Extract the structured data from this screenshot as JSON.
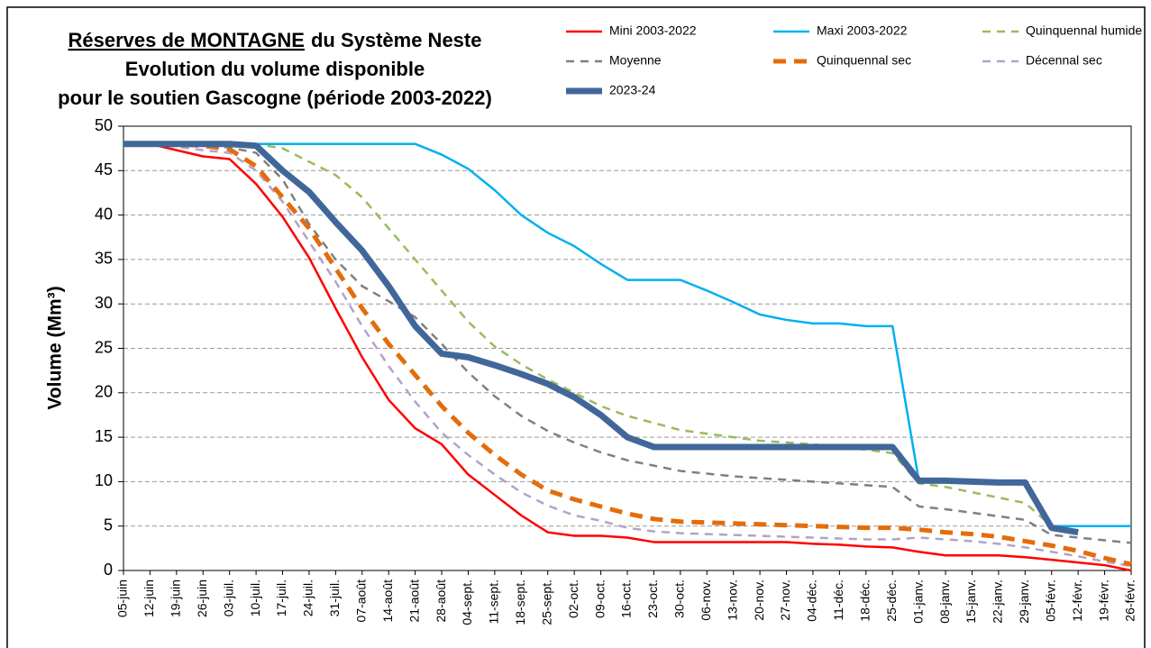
{
  "chart_data": {
    "type": "line",
    "title": [
      [
        "Réserves de MONTAGNE",
        "du Système Neste"
      ],
      [
        "Evolution du volume disponible"
      ],
      [
        "pour le soutien Gascogne (période 2003-2022)"
      ]
    ],
    "y_label": "Volume  (Mm³)",
    "categories": [
      "05-juin",
      "12-juin",
      "19-juin",
      "26-juin",
      "03-juil.",
      "10-juil.",
      "17-juil.",
      "24-juil.",
      "31-juil.",
      "07-août",
      "14-août",
      "21-août",
      "28-août",
      "04-sept.",
      "11-sept.",
      "18-sept.",
      "25-sept.",
      "02-oct.",
      "09-oct.",
      "16-oct.",
      "23-oct.",
      "30-oct.",
      "06-nov.",
      "13-nov.",
      "20-nov.",
      "27-nov.",
      "04-déc.",
      "11-déc.",
      "18-déc.",
      "25-déc.",
      "01-janv.",
      "08-janv.",
      "15-janv.",
      "22-janv.",
      "29-janv.",
      "05-févr.",
      "12-févr.",
      "19-févr.",
      "26-févr."
    ],
    "ylim": [
      0,
      50
    ],
    "yticks": [
      0,
      5,
      10,
      15,
      20,
      25,
      30,
      35,
      40,
      45,
      50
    ],
    "grid": true,
    "series": [
      {
        "name": "Mini 2003-2022",
        "color": "#ff0000",
        "style": "solid",
        "line_width": 2.5,
        "values": [
          48,
          48,
          47.3,
          46.6,
          46.3,
          43.5,
          39.8,
          35.2,
          29.5,
          24,
          19.2,
          16,
          14.2,
          10.8,
          8.5,
          6.2,
          4.3,
          3.9,
          3.9,
          3.7,
          3.2,
          3.2,
          3.2,
          3.2,
          3.2,
          3.2,
          3.0,
          2.9,
          2.7,
          2.6,
          2.1,
          1.7,
          1.7,
          1.7,
          1.5,
          1.2,
          0.9,
          0.6,
          0
        ]
      },
      {
        "name": "Maxi 2003-2022",
        "color": "#00b0f0",
        "style": "solid",
        "line_width": 2.5,
        "values": [
          48,
          48,
          48,
          48,
          48,
          48,
          48,
          48,
          48,
          48,
          48,
          48,
          46.8,
          45.2,
          42.8,
          40,
          38,
          36.5,
          34.5,
          32.7,
          32.7,
          32.7,
          31.5,
          30.2,
          28.8,
          28.2,
          27.8,
          27.8,
          27.5,
          27.5,
          10,
          10,
          10,
          9.8,
          9.8,
          5,
          5,
          5,
          5
        ]
      },
      {
        "name": "Quinquennal humide",
        "color": "#9bbb59",
        "style": "dashed",
        "line_width": 2.5,
        "values": [
          48,
          48,
          48,
          48,
          48,
          48,
          47.5,
          46,
          44.5,
          42,
          38.5,
          35,
          31.5,
          28,
          25.2,
          23.2,
          21.5,
          20,
          18.5,
          17.4,
          16.6,
          15.8,
          15.4,
          15,
          14.6,
          14.4,
          14.2,
          13.9,
          13.6,
          13.2,
          9.8,
          9.4,
          8.8,
          8.2,
          7.6,
          5,
          5,
          5,
          5
        ]
      },
      {
        "name": "Moyenne",
        "color": "#808080",
        "style": "dashed",
        "line_width": 2.5,
        "values": [
          48,
          48,
          48,
          47.8,
          47.6,
          47,
          44,
          39,
          35,
          32,
          30.3,
          28.5,
          25.5,
          22.3,
          19.6,
          17.4,
          15.7,
          14.4,
          13.3,
          12.4,
          11.8,
          11.2,
          10.9,
          10.6,
          10.4,
          10.2,
          10,
          9.8,
          9.6,
          9.4,
          7.2,
          6.9,
          6.5,
          6.1,
          5.7,
          4,
          3.7,
          3.4,
          3.1
        ]
      },
      {
        "name": "Quinquennal sec",
        "color": "#e46c0a",
        "style": "dashed-thick",
        "line_width": 5,
        "values": [
          48,
          48,
          48,
          47.8,
          47.4,
          45.5,
          42,
          38.5,
          34,
          29.5,
          25.5,
          22,
          18.5,
          15.5,
          13,
          10.8,
          9,
          8,
          7.2,
          6.4,
          5.8,
          5.5,
          5.4,
          5.3,
          5.2,
          5.1,
          5.0,
          4.9,
          4.8,
          4.8,
          4.6,
          4.3,
          4.1,
          3.8,
          3.3,
          2.8,
          2.2,
          1.4,
          0.7
        ]
      },
      {
        "name": "Décennal sec",
        "color": "#b3a2c7",
        "style": "dashed",
        "line_width": 2.5,
        "values": [
          48,
          48,
          47.7,
          47.3,
          47,
          45,
          41.5,
          37,
          32.5,
          27.5,
          23,
          19,
          15.5,
          13,
          10.8,
          8.8,
          7.3,
          6.2,
          5.6,
          4.8,
          4.4,
          4.2,
          4.1,
          4,
          3.9,
          3.8,
          3.7,
          3.6,
          3.5,
          3.5,
          3.7,
          3.5,
          3.3,
          3.0,
          2.6,
          2.1,
          1.6,
          1.0,
          0.5
        ]
      },
      {
        "name": "2023-24",
        "color": "#41679a",
        "style": "solid",
        "line_width": 7,
        "values": [
          48,
          48,
          48,
          48,
          48,
          47.8,
          45,
          42.6,
          39.2,
          36,
          32,
          27.5,
          24.4,
          24,
          23.1,
          22.1,
          21,
          19.5,
          17.5,
          15,
          13.9,
          13.9,
          13.9,
          13.9,
          13.9,
          13.9,
          13.9,
          13.9,
          13.9,
          13.9,
          10.1,
          10.1,
          10,
          9.9,
          9.9,
          4.8,
          4.3,
          null,
          null
        ]
      }
    ]
  }
}
